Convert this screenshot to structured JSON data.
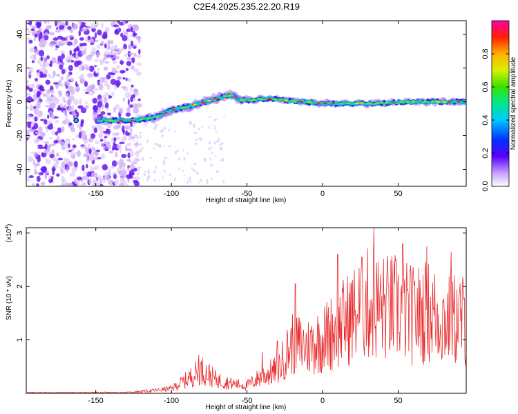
{
  "title": "C2E4.2025.235.22.20.R19",
  "chart_data": [
    {
      "type": "heatmap",
      "xlabel": "Height of straight line (km)",
      "ylabel": "Frequency (Hz)",
      "xlim": [
        -196,
        95
      ],
      "ylim": [
        -50,
        48
      ],
      "x_ticks": [
        -150,
        -100,
        -50,
        0,
        50
      ],
      "y_ticks": [
        -40,
        -20,
        0,
        20,
        40
      ],
      "colorbar": {
        "label": "Normalized spectral amplitude",
        "range": [
          0,
          1
        ],
        "ticks": [
          0.0,
          0.2,
          0.4,
          0.6,
          0.8
        ],
        "tick_labels": [
          "0.0",
          "0.2",
          "0.4",
          "0.6",
          "0.8"
        ]
      },
      "ridge": [
        {
          "x": -150,
          "freq": -11
        },
        {
          "x": -125,
          "freq": -11
        },
        {
          "x": -110,
          "freq": -9
        },
        {
          "x": -100,
          "freq": -5
        },
        {
          "x": -85,
          "freq": -2
        },
        {
          "x": -70,
          "freq": 2
        },
        {
          "x": -60,
          "freq": 4
        },
        {
          "x": -55,
          "freq": 1
        },
        {
          "x": -45,
          "freq": 1
        },
        {
          "x": -35,
          "freq": 2
        },
        {
          "x": -25,
          "freq": 1
        },
        {
          "x": 0,
          "freq": -1
        },
        {
          "x": 30,
          "freq": -1
        },
        {
          "x": 60,
          "freq": 0
        },
        {
          "x": 95,
          "freq": 0
        }
      ]
    },
    {
      "type": "line",
      "xlabel": "Height of straight line (km)",
      "ylabel": "SNR (10 * v/v)",
      "y_scale_label": "(x10",
      "y_scale_exp": "4",
      "xlim": [
        -196,
        95
      ],
      "ylim": [
        0,
        3.1
      ],
      "x_ticks": [
        -150,
        -100,
        -50,
        0,
        50
      ],
      "y_ticks": [
        1,
        2,
        3
      ],
      "color": "#e8292b",
      "envelope": [
        {
          "x": -196,
          "y": 0.02
        },
        {
          "x": -130,
          "y": 0.02
        },
        {
          "x": -112,
          "y": 0.07
        },
        {
          "x": -100,
          "y": 0.12
        },
        {
          "x": -90,
          "y": 0.35
        },
        {
          "x": -80,
          "y": 0.6
        },
        {
          "x": -70,
          "y": 0.35
        },
        {
          "x": -60,
          "y": 0.25
        },
        {
          "x": -50,
          "y": 0.2
        },
        {
          "x": -40,
          "y": 0.45
        },
        {
          "x": -30,
          "y": 0.6
        },
        {
          "x": -20,
          "y": 1.3
        },
        {
          "x": -10,
          "y": 1.2
        },
        {
          "x": 0,
          "y": 1.4
        },
        {
          "x": 10,
          "y": 1.7
        },
        {
          "x": 20,
          "y": 2.0
        },
        {
          "x": 30,
          "y": 2.3
        },
        {
          "x": 40,
          "y": 2.2
        },
        {
          "x": 50,
          "y": 2.2
        },
        {
          "x": 60,
          "y": 2.0
        },
        {
          "x": 70,
          "y": 2.1
        },
        {
          "x": 80,
          "y": 1.9
        },
        {
          "x": 95,
          "y": 1.9
        }
      ],
      "spikes": [
        {
          "x": -82,
          "y": 0.72
        },
        {
          "x": -40,
          "y": 0.78
        },
        {
          "x": -30,
          "y": 0.98
        },
        {
          "x": -18,
          "y": 2.05
        },
        {
          "x": 10,
          "y": 2.6
        },
        {
          "x": 26,
          "y": 2.55
        },
        {
          "x": 34,
          "y": 3.1
        },
        {
          "x": 53,
          "y": 2.8
        },
        {
          "x": 69,
          "y": 2.75
        },
        {
          "x": 85,
          "y": 2.65
        }
      ]
    }
  ]
}
